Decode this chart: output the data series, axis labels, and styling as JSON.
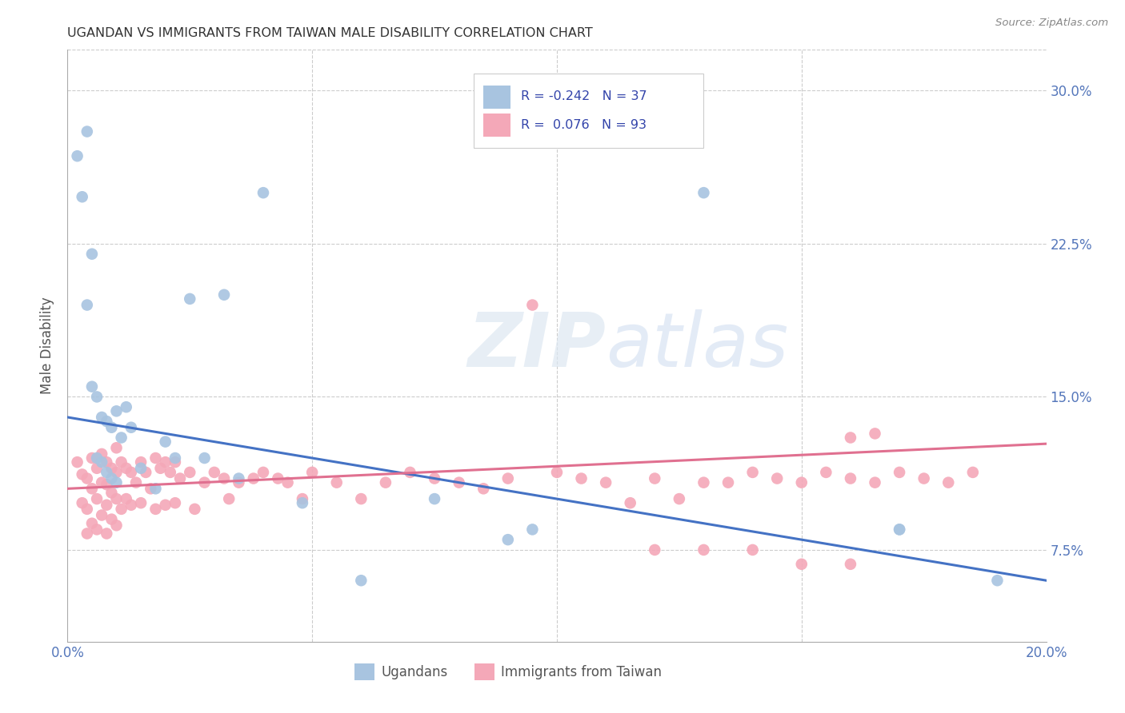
{
  "title": "UGANDAN VS IMMIGRANTS FROM TAIWAN MALE DISABILITY CORRELATION CHART",
  "source": "Source: ZipAtlas.com",
  "ylabel": "Male Disability",
  "watermark": "ZIPatlas",
  "ugandan_r": "-0.242",
  "ugandan_n": "37",
  "taiwan_r": "0.076",
  "taiwan_n": "93",
  "ugandan_color": "#a8c4e0",
  "taiwan_color": "#f4a8b8",
  "ugandan_line_color": "#4472c4",
  "taiwan_line_color": "#e07090",
  "xlim": [
    0.0,
    0.2
  ],
  "ylim": [
    0.03,
    0.32
  ],
  "ug_line_x0": 0.0,
  "ug_line_y0": 0.14,
  "ug_line_x1": 0.2,
  "ug_line_y1": 0.06,
  "tw_line_x0": 0.0,
  "tw_line_y0": 0.105,
  "tw_line_x1": 0.2,
  "tw_line_y1": 0.127,
  "ugandan_x": [
    0.002,
    0.003,
    0.004,
    0.004,
    0.005,
    0.005,
    0.006,
    0.006,
    0.007,
    0.007,
    0.008,
    0.008,
    0.009,
    0.009,
    0.01,
    0.01,
    0.011,
    0.012,
    0.013,
    0.015,
    0.018,
    0.022,
    0.025,
    0.032,
    0.04,
    0.06,
    0.075,
    0.095,
    0.13,
    0.17,
    0.02,
    0.028,
    0.035,
    0.048,
    0.09,
    0.17,
    0.19
  ],
  "ugandan_y": [
    0.268,
    0.248,
    0.28,
    0.195,
    0.155,
    0.22,
    0.15,
    0.12,
    0.14,
    0.118,
    0.138,
    0.113,
    0.135,
    0.11,
    0.143,
    0.108,
    0.13,
    0.145,
    0.135,
    0.115,
    0.105,
    0.12,
    0.198,
    0.2,
    0.25,
    0.06,
    0.1,
    0.085,
    0.25,
    0.085,
    0.128,
    0.12,
    0.11,
    0.098,
    0.08,
    0.085,
    0.06
  ],
  "taiwan_x": [
    0.002,
    0.003,
    0.003,
    0.004,
    0.004,
    0.004,
    0.005,
    0.005,
    0.005,
    0.006,
    0.006,
    0.006,
    0.007,
    0.007,
    0.007,
    0.008,
    0.008,
    0.008,
    0.008,
    0.009,
    0.009,
    0.009,
    0.01,
    0.01,
    0.01,
    0.01,
    0.011,
    0.011,
    0.012,
    0.012,
    0.013,
    0.013,
    0.014,
    0.015,
    0.015,
    0.016,
    0.017,
    0.018,
    0.018,
    0.019,
    0.02,
    0.02,
    0.021,
    0.022,
    0.022,
    0.023,
    0.025,
    0.026,
    0.028,
    0.03,
    0.032,
    0.033,
    0.035,
    0.038,
    0.04,
    0.043,
    0.045,
    0.048,
    0.05,
    0.055,
    0.06,
    0.065,
    0.07,
    0.075,
    0.08,
    0.085,
    0.09,
    0.1,
    0.105,
    0.11,
    0.12,
    0.13,
    0.14,
    0.15,
    0.16,
    0.165,
    0.17,
    0.175,
    0.18,
    0.185,
    0.095,
    0.16,
    0.115,
    0.125,
    0.135,
    0.145,
    0.155,
    0.165,
    0.12,
    0.13,
    0.14,
    0.15,
    0.16
  ],
  "taiwan_y": [
    0.118,
    0.112,
    0.098,
    0.11,
    0.095,
    0.083,
    0.12,
    0.105,
    0.088,
    0.115,
    0.1,
    0.085,
    0.122,
    0.108,
    0.092,
    0.118,
    0.107,
    0.097,
    0.083,
    0.115,
    0.103,
    0.09,
    0.125,
    0.113,
    0.1,
    0.087,
    0.118,
    0.095,
    0.115,
    0.1,
    0.113,
    0.097,
    0.108,
    0.118,
    0.098,
    0.113,
    0.105,
    0.12,
    0.095,
    0.115,
    0.118,
    0.097,
    0.113,
    0.118,
    0.098,
    0.11,
    0.113,
    0.095,
    0.108,
    0.113,
    0.11,
    0.1,
    0.108,
    0.11,
    0.113,
    0.11,
    0.108,
    0.1,
    0.113,
    0.108,
    0.1,
    0.108,
    0.113,
    0.11,
    0.108,
    0.105,
    0.11,
    0.113,
    0.11,
    0.108,
    0.11,
    0.108,
    0.113,
    0.108,
    0.11,
    0.108,
    0.113,
    0.11,
    0.108,
    0.113,
    0.195,
    0.13,
    0.098,
    0.1,
    0.108,
    0.11,
    0.113,
    0.132,
    0.075,
    0.075,
    0.075,
    0.068,
    0.068
  ]
}
